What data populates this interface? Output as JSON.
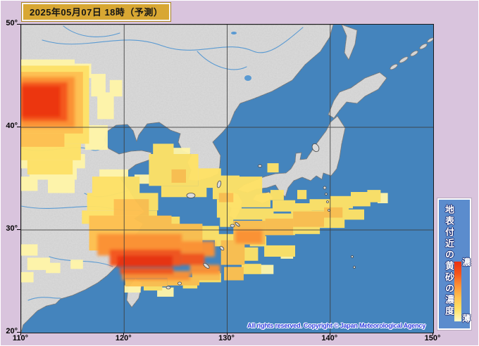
{
  "header": {
    "datetime": "2025年05月07日 18時（予測）"
  },
  "axes": {
    "lon": {
      "values": [
        110,
        120,
        130,
        140,
        150
      ],
      "labels": [
        "110°",
        "120°",
        "130°",
        "140°",
        "150°"
      ]
    },
    "lat": {
      "values": [
        50,
        40,
        30,
        20
      ],
      "labels": [
        "50°",
        "40°",
        "30°",
        "20°"
      ]
    }
  },
  "legend": {
    "title": "地表付近の黄砂の濃度",
    "dense_label": "濃",
    "thin_label": "薄",
    "gradient_top_to_bottom": [
      "#EC3210",
      "#F4551B",
      "#FB9136",
      "#FFC14E",
      "#FFE266",
      "#FFF9C8"
    ]
  },
  "map": {
    "copyright": "All rights reserved. Copyright © Japan Meteorological Agency",
    "colors": {
      "sea": "#4484BD",
      "land": "#DBDBDB",
      "margin": "#D9C4DD",
      "title_box": "#D8A733",
      "legend_bg": "#5B8CCD",
      "grid": "#3C3C3C",
      "copyright_text": "#2E3CDF",
      "coast": "#5A5A5A",
      "river": "#5A9AD2"
    },
    "levels": {
      "1": "#FFF5A9",
      "2": "#FFE266",
      "3": "#FFC14E",
      "4": "#FB9136",
      "5": "#F4551B",
      "6": "#EC3210"
    },
    "overlay_cells": [
      [
        110,
        46.6,
        5.2,
        0.8,
        1
      ],
      [
        115.2,
        46.2,
        1.6,
        1.4,
        1
      ],
      [
        116.8,
        45.2,
        1.4,
        2.2,
        1
      ],
      [
        117.4,
        43.4,
        1.6,
        2.6,
        1
      ],
      [
        118.6,
        44.6,
        1.2,
        1.6,
        1
      ],
      [
        116.2,
        40.2,
        2.2,
        2.4,
        1
      ],
      [
        110,
        37.4,
        6.2,
        1.4,
        1
      ],
      [
        110.8,
        36.2,
        4.6,
        1.3,
        1
      ],
      [
        110,
        35.2,
        1.6,
        1.4,
        1
      ],
      [
        112.6,
        34.9,
        2.6,
        1.3,
        1
      ],
      [
        110,
        28.6,
        1.6,
        1.1,
        1
      ],
      [
        110.6,
        27.3,
        2.2,
        1.2,
        1
      ],
      [
        112.4,
        26.8,
        1.4,
        1.0,
        1
      ],
      [
        114.8,
        27.1,
        1.2,
        0.9,
        1
      ],
      [
        110,
        25.9,
        1.2,
        1.0,
        1
      ],
      [
        117.6,
        35.9,
        2.8,
        1.0,
        1
      ],
      [
        121.0,
        35.4,
        1.6,
        0.9,
        1
      ],
      [
        124.8,
        38.0,
        1.6,
        1.2,
        1
      ],
      [
        123.2,
        24.4,
        1.6,
        0.9,
        1
      ],
      [
        120.0,
        24.6,
        1.6,
        0.7,
        1
      ],
      [
        144.6,
        33.6,
        1.0,
        1.0,
        1
      ],
      [
        133.2,
        26.6,
        1.3,
        0.9,
        1
      ],
      [
        135.2,
        28.0,
        1.2,
        0.8,
        1
      ],
      [
        110,
        46.0,
        6.6,
        7.6,
        2
      ],
      [
        110,
        38.4,
        5.8,
        1.6,
        2
      ],
      [
        110.6,
        36.8,
        4.4,
        1.4,
        2
      ],
      [
        122.8,
        38.4,
        2.0,
        1.2,
        2
      ],
      [
        122.4,
        37.4,
        4.8,
        3.1,
        2
      ],
      [
        123.6,
        34.3,
        4.4,
        1.1,
        2
      ],
      [
        127.2,
        36.0,
        2.2,
        1.9,
        2
      ],
      [
        128.6,
        35.3,
        2.6,
        2.3,
        2
      ],
      [
        129.0,
        33.0,
        2.4,
        1.8,
        2
      ],
      [
        131.2,
        35.2,
        2.2,
        1.6,
        2
      ],
      [
        130.8,
        33.6,
        3.4,
        1.4,
        2
      ],
      [
        134.2,
        33.9,
        1.3,
        1.0,
        2
      ],
      [
        133.9,
        36.5,
        1.1,
        0.9,
        2
      ],
      [
        136.8,
        33.9,
        0.9,
        0.9,
        2
      ],
      [
        129.3,
        31.4,
        1.3,
        1.1,
        2
      ],
      [
        116.9,
        35.2,
        4.6,
        1.6,
        2
      ],
      [
        116.4,
        33.6,
        6.9,
        1.7,
        2
      ],
      [
        115.9,
        31.9,
        7.3,
        1.3,
        2
      ],
      [
        122.8,
        31.3,
        2.6,
        1.0,
        2
      ],
      [
        126.9,
        30.4,
        2.3,
        1.4,
        2
      ],
      [
        128.8,
        29.6,
        2.2,
        1.2,
        2
      ],
      [
        121.9,
        25.1,
        1.8,
        1.0,
        2
      ],
      [
        125.7,
        25.2,
        1.4,
        0.9,
        2
      ],
      [
        127.2,
        25.8,
        2.2,
        0.9,
        2
      ],
      [
        131.4,
        26.7,
        1.9,
        1.0,
        2
      ],
      [
        131.3,
        28.3,
        1.7,
        1.3,
        2
      ],
      [
        130.4,
        32.1,
        4.1,
        1.1,
        2
      ],
      [
        133.6,
        28.5,
        3.0,
        1.1,
        2
      ],
      [
        134.4,
        32.9,
        2.2,
        1.1,
        2
      ],
      [
        136.2,
        32.6,
        2.0,
        1.0,
        2
      ],
      [
        138.0,
        33.0,
        2.2,
        1.1,
        2
      ],
      [
        140.0,
        33.3,
        2.2,
        1.2,
        2
      ],
      [
        142.0,
        33.7,
        1.9,
        1.4,
        2
      ],
      [
        143.6,
        33.9,
        1.3,
        1.2,
        2
      ],
      [
        132.2,
        29.4,
        1.6,
        1.0,
        2
      ],
      [
        136.4,
        30.6,
        2.6,
        1.0,
        2
      ],
      [
        138.8,
        31.2,
        2.6,
        1.0,
        2
      ],
      [
        141.2,
        32.0,
        2.1,
        1.0,
        2
      ],
      [
        133.4,
        31.6,
        3.2,
        2.1,
        2
      ],
      [
        136.3,
        31.9,
        3.4,
        1.6,
        2
      ],
      [
        139.4,
        32.4,
        2.4,
        1.2,
        2
      ],
      [
        110,
        45.4,
        6.0,
        6.0,
        3
      ],
      [
        110,
        39.4,
        4.2,
        1.3,
        3
      ],
      [
        116.6,
        31.4,
        8.0,
        3.4,
        3
      ],
      [
        124.6,
        30.6,
        3.0,
        2.6,
        3
      ],
      [
        119.0,
        33.0,
        3.4,
        1.6,
        3
      ],
      [
        129.4,
        29.0,
        2.3,
        2.4,
        3
      ],
      [
        120.1,
        25.2,
        4.1,
        0.7,
        3
      ],
      [
        124.2,
        25.4,
        3.1,
        0.8,
        3
      ],
      [
        126.6,
        26.0,
        2.7,
        0.9,
        3
      ],
      [
        129.7,
        26.4,
        1.9,
        1.3,
        3
      ],
      [
        130.6,
        30.9,
        3.1,
        2.3,
        3
      ],
      [
        133.7,
        31.1,
        2.7,
        1.6,
        3
      ],
      [
        136.4,
        31.8,
        3.0,
        1.5,
        3
      ],
      [
        139.4,
        32.2,
        1.8,
        1.0,
        3
      ],
      [
        124.6,
        35.9,
        1.4,
        1.3,
        3
      ],
      [
        129.2,
        33.6,
        1.4,
        0.9,
        3
      ],
      [
        110,
        44.9,
        5.2,
        4.9,
        4
      ],
      [
        117.4,
        29.6,
        8.2,
        2.1,
        4
      ],
      [
        125.6,
        28.9,
        3.2,
        1.5,
        4
      ],
      [
        119.8,
        26.0,
        6.6,
        0.9,
        4
      ],
      [
        126.4,
        26.6,
        2.9,
        0.9,
        4
      ],
      [
        130.8,
        30.0,
        2.6,
        1.3,
        4
      ],
      [
        110,
        44.4,
        4.5,
        3.8,
        5
      ],
      [
        118.6,
        28.1,
        6.9,
        1.6,
        5
      ],
      [
        125.5,
        27.7,
        2.3,
        1.1,
        5
      ],
      [
        119.6,
        26.3,
        5.2,
        0.6,
        5
      ],
      [
        110,
        44.0,
        3.8,
        3.0,
        6
      ],
      [
        119.3,
        27.5,
        5.4,
        1.1,
        6
      ]
    ]
  }
}
